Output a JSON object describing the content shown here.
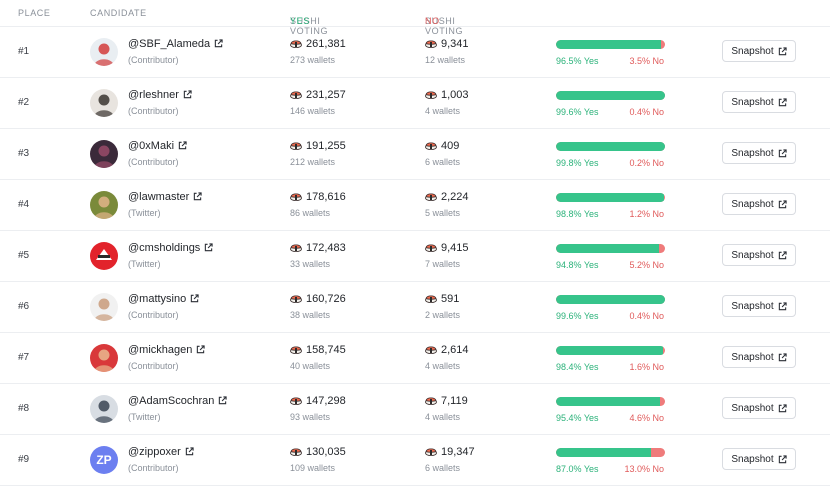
{
  "header": {
    "place": "PLACE",
    "candidate": "CANDIDATE",
    "yes_prefix": "SUSHI VOTING ",
    "yes_word": "YES",
    "no_prefix": "SUSHI VOTING ",
    "no_word": "NO"
  },
  "colors": {
    "yes": "#36c48b",
    "no": "#ef7b7b"
  },
  "snapshot_label": "Snapshot",
  "rows": [
    {
      "place": "#1",
      "name": "@SBF_Alameda",
      "role": "(Contributor)",
      "yes_count": "261,381",
      "yes_wallets": "273 wallets",
      "no_count": "9,341",
      "no_wallets": "12 wallets",
      "yes_pct": "96.5% Yes",
      "no_pct": "3.5% No",
      "yes_share": 96.5,
      "avatar": {
        "type": "photo",
        "bg": "#e9eef2",
        "fg": "#d23b3b"
      }
    },
    {
      "place": "#2",
      "name": "@rleshner",
      "role": "(Contributor)",
      "yes_count": "231,257",
      "yes_wallets": "146 wallets",
      "no_count": "1,003",
      "no_wallets": "4 wallets",
      "yes_pct": "99.6% Yes",
      "no_pct": "0.4% No",
      "yes_share": 99.6,
      "avatar": {
        "type": "photo",
        "bg": "#e8e4df",
        "fg": "#3a3530"
      }
    },
    {
      "place": "#3",
      "name": "@0xMaki",
      "role": "(Contributor)",
      "yes_count": "191,255",
      "yes_wallets": "212 wallets",
      "no_count": "409",
      "no_wallets": "6 wallets",
      "yes_pct": "99.8% Yes",
      "no_pct": "0.2% No",
      "yes_share": 99.8,
      "avatar": {
        "type": "photo",
        "bg": "#3b2a3a",
        "fg": "#9a4b6a"
      }
    },
    {
      "place": "#4",
      "name": "@lawmaster",
      "role": "(Twitter)",
      "yes_count": "178,616",
      "yes_wallets": "86 wallets",
      "no_count": "2,224",
      "no_wallets": "5 wallets",
      "yes_pct": "98.8% Yes",
      "no_pct": "1.2% No",
      "yes_share": 98.8,
      "avatar": {
        "type": "photo",
        "bg": "#7a8a3a",
        "fg": "#e2b48a"
      }
    },
    {
      "place": "#5",
      "name": "@cmsholdings",
      "role": "(Twitter)",
      "yes_count": "172,483",
      "yes_wallets": "33 wallets",
      "no_count": "9,415",
      "no_wallets": "7 wallets",
      "yes_pct": "94.8% Yes",
      "no_pct": "5.2% No",
      "yes_share": 94.8,
      "avatar": {
        "type": "logo",
        "bg": "#e2232b",
        "fg": "#ffffff"
      }
    },
    {
      "place": "#6",
      "name": "@mattysino",
      "role": "(Contributor)",
      "yes_count": "160,726",
      "yes_wallets": "38 wallets",
      "no_count": "591",
      "no_wallets": "2 wallets",
      "yes_pct": "99.6% Yes",
      "no_pct": "0.4% No",
      "yes_share": 99.6,
      "avatar": {
        "type": "photo",
        "bg": "#f1f1f1",
        "fg": "#c99b7a"
      }
    },
    {
      "place": "#7",
      "name": "@mickhagen",
      "role": "(Contributor)",
      "yes_count": "158,745",
      "yes_wallets": "40 wallets",
      "no_count": "2,614",
      "no_wallets": "4 wallets",
      "yes_pct": "98.4% Yes",
      "no_pct": "1.6% No",
      "yes_share": 98.4,
      "avatar": {
        "type": "photo",
        "bg": "#d9383a",
        "fg": "#e9b98f"
      }
    },
    {
      "place": "#8",
      "name": "@AdamScochran",
      "role": "(Twitter)",
      "yes_count": "147,298",
      "yes_wallets": "93 wallets",
      "no_count": "7,119",
      "no_wallets": "4 wallets",
      "yes_pct": "95.4% Yes",
      "no_pct": "4.6% No",
      "yes_share": 95.4,
      "avatar": {
        "type": "photo",
        "bg": "#d8dde3",
        "fg": "#3a4452"
      }
    },
    {
      "place": "#9",
      "name": "@zippoxer",
      "role": "(Contributor)",
      "yes_count": "130,035",
      "yes_wallets": "109 wallets",
      "no_count": "19,347",
      "no_wallets": "6 wallets",
      "yes_pct": "87.0% Yes",
      "no_pct": "13.0% No",
      "yes_share": 87.0,
      "avatar": {
        "type": "logo",
        "bg": "#6c7ff0",
        "fg": "#ffffff",
        "text": "ZP"
      }
    }
  ]
}
